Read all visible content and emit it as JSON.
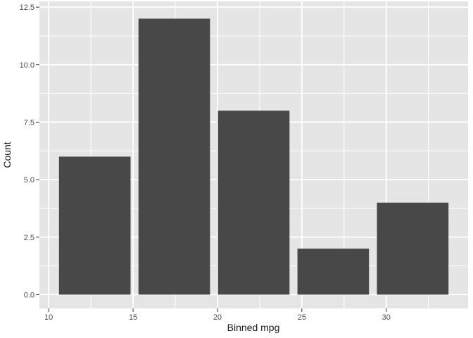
{
  "figure": {
    "background": "#FFFFFF"
  },
  "chart_data": {
    "type": "bar",
    "title": "",
    "xlabel": "Binned mpg",
    "ylabel": "Count",
    "bars": [
      {
        "center": 12.73,
        "count": 6
      },
      {
        "center": 17.44,
        "count": 12
      },
      {
        "center": 22.15,
        "count": 8
      },
      {
        "center": 26.86,
        "count": 2
      },
      {
        "center": 31.57,
        "count": 4
      }
    ],
    "bar_width": 4.24,
    "xlim": [
      9.45,
      34.85
    ],
    "ylim": [
      -0.6,
      12.75
    ],
    "x_ticks": {
      "values": [
        10,
        15,
        20,
        25,
        30
      ],
      "labels": [
        "10",
        "15",
        "20",
        "25",
        "30"
      ]
    },
    "y_ticks": {
      "values": [
        0,
        2.5,
        5,
        7.5,
        10,
        12.5
      ],
      "labels": [
        "0.0",
        "2.5",
        "5.0",
        "7.5",
        "10.0",
        "12.5"
      ]
    },
    "x_minor_gridlines": [
      12.5,
      17.5,
      22.5,
      27.5,
      32.5
    ],
    "y_minor_gridlines": [
      1.25,
      3.75,
      6.25,
      8.75,
      11.25
    ],
    "grid": "on",
    "legend": "none",
    "style": "ggplot2-grey-theme",
    "colors": {
      "bar_fill": "#484848",
      "panel_background": "#E5E5E5",
      "gridline_major": "#FFFFFF",
      "gridline_minor": "#FFFFFF",
      "tick_mark": "#333333",
      "tick_label": "#4D4D4D",
      "axis_title": "#1A1A1A",
      "figure_background": "#FFFFFF"
    }
  }
}
